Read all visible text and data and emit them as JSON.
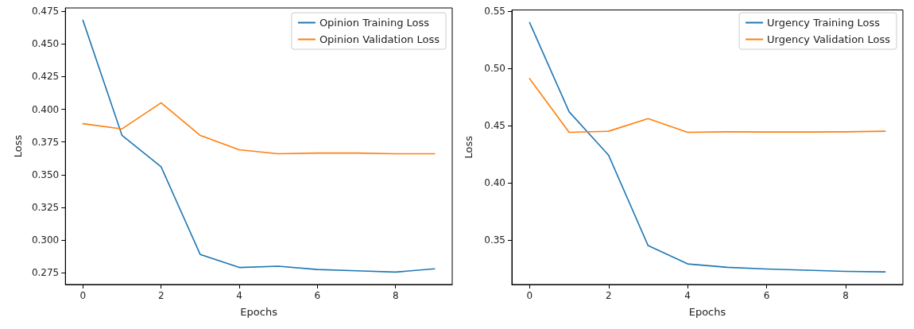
{
  "chart_data": [
    {
      "type": "line",
      "xlabel": "Epochs",
      "ylabel": "Loss",
      "x": [
        0,
        1,
        2,
        3,
        4,
        5,
        6,
        7,
        8,
        9
      ],
      "xlim": [
        -0.45,
        9.45
      ],
      "xticks": [
        0,
        2,
        4,
        6,
        8
      ],
      "ylim": [
        0.266,
        0.4775
      ],
      "yticks": [
        0.275,
        {
          "value": 0.3,
          "label": "0.300"
        },
        0.325,
        {
          "value": 0.35,
          "label": "0.350"
        },
        0.375,
        {
          "value": 0.4,
          "label": "0.400"
        },
        0.425,
        {
          "value": 0.45,
          "label": "0.450"
        },
        0.475
      ],
      "grid": false,
      "legend": "top right",
      "marker": "none",
      "line_style": "solid",
      "series": [
        {
          "name": "Opinion Training Loss",
          "color": "#1f77b4",
          "values": [
            0.468,
            0.38,
            0.356,
            0.289,
            0.279,
            0.28,
            0.2775,
            0.2765,
            0.2755,
            0.278
          ]
        },
        {
          "name": "Opinion Validation Loss",
          "color": "#ff7f0e",
          "values": [
            0.389,
            0.385,
            0.405,
            0.38,
            0.369,
            0.366,
            0.3665,
            0.3665,
            0.366,
            0.366
          ]
        }
      ]
    },
    {
      "type": "line",
      "xlabel": "Epochs",
      "ylabel": "Loss",
      "x": [
        0,
        1,
        2,
        3,
        4,
        5,
        6,
        7,
        8,
        9
      ],
      "xlim": [
        -0.45,
        9.45
      ],
      "xticks": [
        0,
        2,
        4,
        6,
        8
      ],
      "ylim": [
        0.311,
        0.551
      ],
      "yticks": [
        0.35,
        {
          "value": 0.4,
          "label": "0.40"
        },
        0.45,
        {
          "value": 0.5,
          "label": "0.50"
        },
        0.55
      ],
      "grid": false,
      "legend": "top right",
      "marker": "none",
      "line_style": "solid",
      "series": [
        {
          "name": "Urgency Training Loss",
          "color": "#1f77b4",
          "values": [
            0.54,
            0.462,
            0.424,
            0.345,
            0.329,
            0.326,
            0.3245,
            0.3235,
            0.3225,
            0.322
          ]
        },
        {
          "name": "Urgency Validation Loss",
          "color": "#ff7f0e",
          "values": [
            0.491,
            0.444,
            0.445,
            0.456,
            0.444,
            0.4445,
            0.4443,
            0.4443,
            0.4445,
            0.445
          ]
        }
      ]
    }
  ]
}
